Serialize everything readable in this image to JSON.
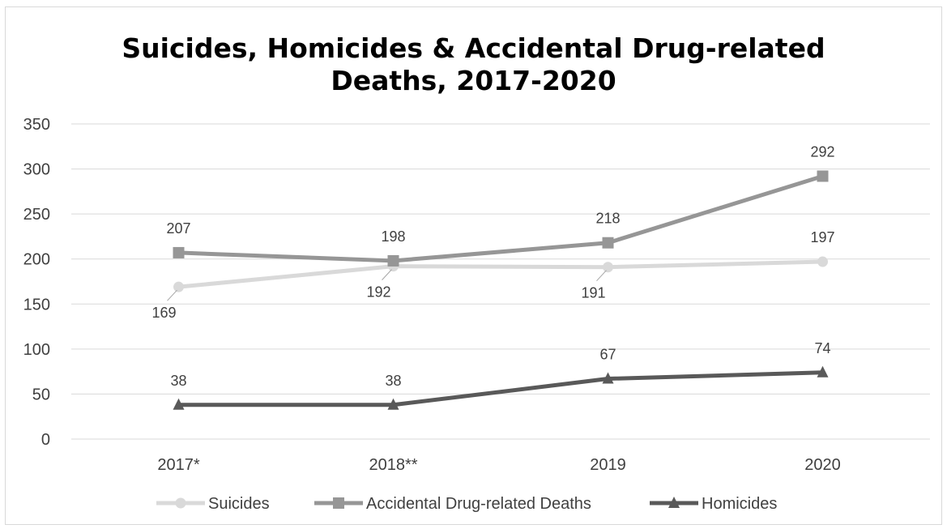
{
  "chart_data": {
    "type": "line",
    "title": "Suicides, Homicides & Accidental Drug-related Deaths, 2017-2020",
    "title_lines": [
      "Suicides, Homicides & Accidental Drug-related",
      "Deaths, 2017-2020"
    ],
    "categories": [
      "2017*",
      "2018**",
      "2019",
      "2020"
    ],
    "ylim": [
      0,
      350
    ],
    "yticks": [
      0,
      50,
      100,
      150,
      200,
      250,
      300,
      350
    ],
    "grid": true,
    "legend_position": "bottom",
    "series": [
      {
        "name": "Suicides",
        "values": [
          169,
          192,
          191,
          197
        ],
        "color": "#d9d9d9",
        "marker": "circle",
        "label_pos": [
          "below",
          "below",
          "below",
          "above"
        ]
      },
      {
        "name": "Accidental Drug-related Deaths",
        "values": [
          207,
          198,
          218,
          292
        ],
        "color": "#969696",
        "marker": "square",
        "label_pos": [
          "above",
          "above",
          "above",
          "above"
        ]
      },
      {
        "name": "Homicides",
        "values": [
          38,
          38,
          67,
          74
        ],
        "color": "#595959",
        "marker": "triangle",
        "label_pos": [
          "above",
          "above",
          "above",
          "above"
        ]
      }
    ]
  }
}
